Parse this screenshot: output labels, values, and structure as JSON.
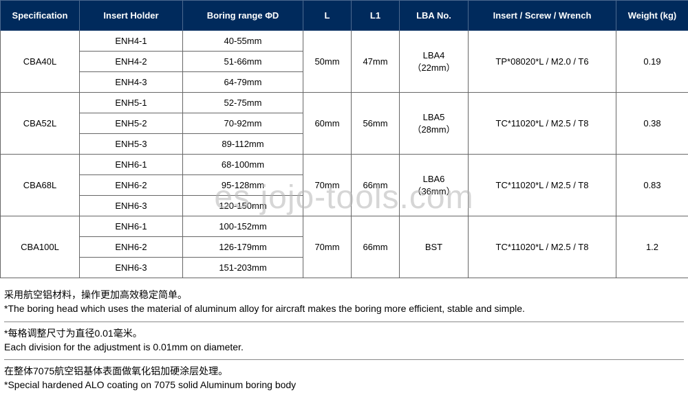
{
  "watermark": "es.jojo-tools.com",
  "table": {
    "headers": {
      "spec": "Specification",
      "holder": "Insert Holder",
      "range": "Boring range ΦD",
      "l": "L",
      "l1": "L1",
      "lba": "LBA No.",
      "isw": "Insert / Screw / Wrench",
      "weight": "Weight (kg)"
    },
    "groups": [
      {
        "spec": "CBA40L",
        "l": "50mm",
        "l1": "47mm",
        "lba_line1": "LBA4",
        "lba_line2": "（22mm）",
        "isw": "TP*08020*L / M2.0 / T6",
        "weight": "0.19",
        "rows": [
          {
            "holder": "ENH4-1",
            "range": "40-55mm"
          },
          {
            "holder": "ENH4-2",
            "range": "51-66mm"
          },
          {
            "holder": "ENH4-3",
            "range": "64-79mm"
          }
        ]
      },
      {
        "spec": "CBA52L",
        "l": "60mm",
        "l1": "56mm",
        "lba_line1": "LBA5",
        "lba_line2": "（28mm）",
        "isw": "TC*11020*L / M2.5 / T8",
        "weight": "0.38",
        "rows": [
          {
            "holder": "ENH5-1",
            "range": "52-75mm"
          },
          {
            "holder": "ENH5-2",
            "range": "70-92mm"
          },
          {
            "holder": "ENH5-3",
            "range": "89-112mm"
          }
        ]
      },
      {
        "spec": "CBA68L",
        "l": "70mm",
        "l1": "66mm",
        "lba_line1": "LBA6",
        "lba_line2": "（36mm）",
        "isw": "TC*11020*L / M2.5 / T8",
        "weight": "0.83",
        "rows": [
          {
            "holder": "ENH6-1",
            "range": "68-100mm"
          },
          {
            "holder": "ENH6-2",
            "range": "95-128mm"
          },
          {
            "holder": "ENH6-3",
            "range": "120-150mm"
          }
        ]
      },
      {
        "spec": "CBA100L",
        "l": "70mm",
        "l1": "66mm",
        "lba_line1": "BST",
        "lba_line2": "",
        "isw": "TC*11020*L / M2.5 / T8",
        "weight": "1.2",
        "rows": [
          {
            "holder": "ENH6-1",
            "range": "100-152mm"
          },
          {
            "holder": "ENH6-2",
            "range": "126-179mm"
          },
          {
            "holder": "ENH6-3",
            "range": "151-203mm"
          }
        ]
      }
    ]
  },
  "notes": [
    {
      "cn": "采用航空铝材料，操作更加高效稳定简单。",
      "en": "*The boring head which uses the material of aluminum alloy for aircraft makes the boring more efficient, stable and simple."
    },
    {
      "cn": "*每格调整尺寸为直径0.01毫米。",
      "en": "Each division for the adjustment is 0.01mm on diameter."
    },
    {
      "cn": "在整体7075航空铝基体表面做氧化铝加硬涂层处理。",
      "en": "*Special hardened ALO coating on 7075 solid Aluminum boring body"
    }
  ],
  "colors": {
    "header_bg": "#002a5c",
    "header_text": "#ffffff",
    "cell_border": "#666666",
    "body_text": "#000000",
    "background": "#ffffff"
  }
}
